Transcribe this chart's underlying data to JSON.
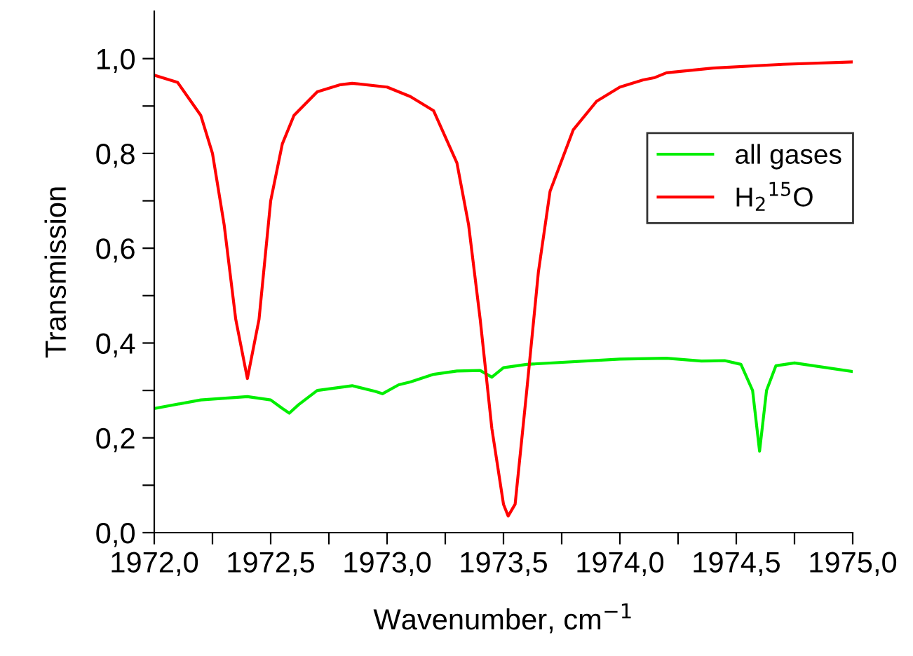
{
  "chart_data": {
    "type": "line",
    "xlabel": "Wavenumber, cm$^{−1}$",
    "ylabel": "Transmission",
    "xlim": [
      1972.0,
      1975.0
    ],
    "ylim": [
      0.0,
      1.1
    ],
    "xticks": [
      {
        "value": 1972.0,
        "label": "1972,0"
      },
      {
        "value": 1972.25,
        "label": null
      },
      {
        "value": 1972.5,
        "label": "1972,5"
      },
      {
        "value": 1972.75,
        "label": null
      },
      {
        "value": 1973.0,
        "label": "1973,0"
      },
      {
        "value": 1973.25,
        "label": null
      },
      {
        "value": 1973.5,
        "label": "1973,5"
      },
      {
        "value": 1973.75,
        "label": null
      },
      {
        "value": 1974.0,
        "label": "1974,0"
      },
      {
        "value": 1974.25,
        "label": null
      },
      {
        "value": 1974.5,
        "label": "1974,5"
      },
      {
        "value": 1974.75,
        "label": null
      },
      {
        "value": 1975.0,
        "label": "1975,0"
      }
    ],
    "yticks": [
      {
        "value": 0.0,
        "label": "0,0"
      },
      {
        "value": 0.1,
        "label": null
      },
      {
        "value": 0.2,
        "label": "0,2"
      },
      {
        "value": 0.3,
        "label": null
      },
      {
        "value": 0.4,
        "label": "0,4"
      },
      {
        "value": 0.5,
        "label": null
      },
      {
        "value": 0.6,
        "label": "0,6"
      },
      {
        "value": 0.7,
        "label": null
      },
      {
        "value": 0.8,
        "label": "0,8"
      },
      {
        "value": 0.9,
        "label": null
      },
      {
        "value": 1.0,
        "label": "1,0"
      }
    ],
    "grid": false,
    "legend": "right",
    "marker": "none",
    "line_style": "solid",
    "series": [
      {
        "name": "all gases",
        "color": "#00ee00",
        "x": [
          1972.0,
          1972.2,
          1972.4,
          1972.5,
          1972.55,
          1972.58,
          1972.62,
          1972.7,
          1972.85,
          1972.95,
          1972.98,
          1973.05,
          1973.1,
          1973.2,
          1973.3,
          1973.4,
          1973.45,
          1973.5,
          1973.6,
          1974.0,
          1974.2,
          1974.35,
          1974.45,
          1974.52,
          1974.57,
          1974.6,
          1974.63,
          1974.67,
          1974.75,
          1975.0
        ],
        "values": [
          0.262,
          0.28,
          0.287,
          0.28,
          0.262,
          0.252,
          0.27,
          0.3,
          0.31,
          0.298,
          0.293,
          0.312,
          0.318,
          0.334,
          0.341,
          0.342,
          0.328,
          0.348,
          0.355,
          0.366,
          0.368,
          0.362,
          0.363,
          0.355,
          0.3,
          0.172,
          0.3,
          0.352,
          0.358,
          0.34
        ]
      },
      {
        "name": "H$_{2}$$^{15}$O",
        "color": "#ff0000",
        "x": [
          1972.0,
          1972.1,
          1972.2,
          1972.25,
          1972.3,
          1972.35,
          1972.4,
          1972.45,
          1972.5,
          1972.55,
          1972.6,
          1972.7,
          1972.8,
          1972.85,
          1973.0,
          1973.1,
          1973.2,
          1973.3,
          1973.35,
          1973.4,
          1973.45,
          1973.5,
          1973.52,
          1973.55,
          1973.6,
          1973.65,
          1973.7,
          1973.8,
          1973.9,
          1974.0,
          1974.1,
          1974.15,
          1974.2,
          1974.4,
          1974.7,
          1975.0
        ],
        "values": [
          0.965,
          0.95,
          0.88,
          0.8,
          0.65,
          0.45,
          0.325,
          0.45,
          0.7,
          0.82,
          0.88,
          0.93,
          0.945,
          0.948,
          0.94,
          0.92,
          0.89,
          0.78,
          0.65,
          0.45,
          0.22,
          0.06,
          0.035,
          0.06,
          0.3,
          0.55,
          0.72,
          0.85,
          0.91,
          0.94,
          0.955,
          0.96,
          0.97,
          0.98,
          0.988,
          0.993
        ]
      }
    ]
  }
}
